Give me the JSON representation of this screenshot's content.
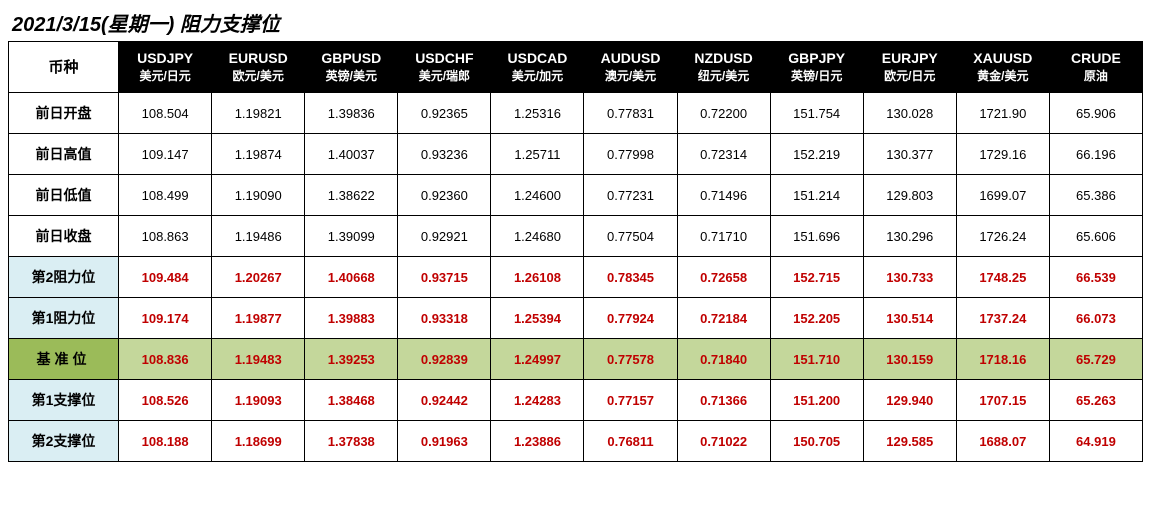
{
  "title": "2021/3/15(星期一) 阻力支撑位",
  "corner_label": "币种",
  "columns": [
    {
      "symbol": "USDJPY",
      "sub": "美元/日元"
    },
    {
      "symbol": "EURUSD",
      "sub": "欧元/美元"
    },
    {
      "symbol": "GBPUSD",
      "sub": "英镑/美元"
    },
    {
      "symbol": "USDCHF",
      "sub": "美元/瑞郎"
    },
    {
      "symbol": "USDCAD",
      "sub": "美元/加元"
    },
    {
      "symbol": "AUDUSD",
      "sub": "澳元/美元"
    },
    {
      "symbol": "NZDUSD",
      "sub": "纽元/美元"
    },
    {
      "symbol": "GBPJPY",
      "sub": "英镑/日元"
    },
    {
      "symbol": "EURJPY",
      "sub": "欧元/日元"
    },
    {
      "symbol": "XAUUSD",
      "sub": "黄金/美元"
    },
    {
      "symbol": "CRUDE",
      "sub": "原油"
    }
  ],
  "rows": [
    {
      "label": "前日开盘",
      "type": "plain",
      "cells": [
        "108.504",
        "1.19821",
        "1.39836",
        "0.92365",
        "1.25316",
        "0.77831",
        "0.72200",
        "151.754",
        "130.028",
        "1721.90",
        "65.906"
      ]
    },
    {
      "label": "前日高值",
      "type": "plain",
      "cells": [
        "109.147",
        "1.19874",
        "1.40037",
        "0.93236",
        "1.25711",
        "0.77998",
        "0.72314",
        "152.219",
        "130.377",
        "1729.16",
        "66.196"
      ]
    },
    {
      "label": "前日低值",
      "type": "plain",
      "cells": [
        "108.499",
        "1.19090",
        "1.38622",
        "0.92360",
        "1.24600",
        "0.77231",
        "0.71496",
        "151.214",
        "129.803",
        "1699.07",
        "65.386"
      ]
    },
    {
      "label": "前日收盘",
      "type": "plain",
      "cells": [
        "108.863",
        "1.19486",
        "1.39099",
        "0.92921",
        "1.24680",
        "0.77504",
        "0.71710",
        "151.696",
        "130.296",
        "1726.24",
        "65.606"
      ]
    },
    {
      "label": "第2阻力位",
      "type": "rs",
      "cells": [
        "109.484",
        "1.20267",
        "1.40668",
        "0.93715",
        "1.26108",
        "0.78345",
        "0.72658",
        "152.715",
        "130.733",
        "1748.25",
        "66.539"
      ]
    },
    {
      "label": "第1阻力位",
      "type": "rs",
      "cells": [
        "109.174",
        "1.19877",
        "1.39883",
        "0.93318",
        "1.25394",
        "0.77924",
        "0.72184",
        "152.205",
        "130.514",
        "1737.24",
        "66.073"
      ]
    },
    {
      "label": "基准位",
      "type": "base",
      "cells": [
        "108.836",
        "1.19483",
        "1.39253",
        "0.92839",
        "1.24997",
        "0.77578",
        "0.71840",
        "151.710",
        "130.159",
        "1718.16",
        "65.729"
      ]
    },
    {
      "label": "第1支撑位",
      "type": "rs",
      "cells": [
        "108.526",
        "1.19093",
        "1.38468",
        "0.92442",
        "1.24283",
        "0.77157",
        "0.71366",
        "151.200",
        "129.940",
        "1707.15",
        "65.263"
      ]
    },
    {
      "label": "第2支撑位",
      "type": "rs",
      "cells": [
        "108.188",
        "1.18699",
        "1.37838",
        "0.91963",
        "1.23886",
        "0.76811",
        "0.71022",
        "150.705",
        "129.585",
        "1688.07",
        "64.919"
      ]
    }
  ],
  "colors": {
    "header_bg": "#000000",
    "header_fg": "#ffffff",
    "value_red": "#c00000",
    "rs_label_bg": "#daeef3",
    "base_label_bg": "#9bbb59",
    "base_cell_bg": "#c4d79b",
    "border": "#000000"
  }
}
